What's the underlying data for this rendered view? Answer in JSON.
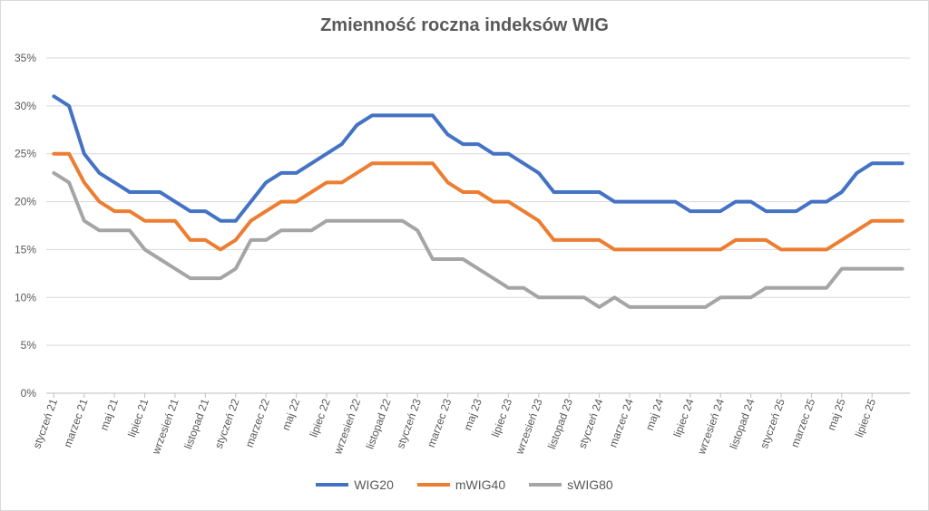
{
  "chart_data": {
    "type": "line",
    "title": "Zmienność roczna indeksów WIG",
    "y_ticks": [
      "0%",
      "5%",
      "10%",
      "15%",
      "20%",
      "25%",
      "30%",
      "35%"
    ],
    "ylim": [
      0,
      35
    ],
    "x_tick_labels": [
      "styczeń 21",
      "marzec 21",
      "maj 21",
      "lipiec 21",
      "wrzesień 21",
      "listopad 21",
      "styczeń 22",
      "marzec 22",
      "maj 22",
      "lipiec 22",
      "wrzesień 22",
      "listopad 22",
      "styczeń 23",
      "marzec 23",
      "maj 23",
      "lipiec 23",
      "wrzesień 23",
      "listopad 23",
      "styczeń 24",
      "marzec 24",
      "maj 24",
      "lipiec 24",
      "wrzesień 24",
      "listopad 24",
      "styczeń 25",
      "marzec 25",
      "maj 25",
      "lipiec 25"
    ],
    "grid": true,
    "legend_position": "bottom",
    "series": [
      {
        "name": "WIG20",
        "color": "#4472c4",
        "values": [
          31,
          30,
          25,
          23,
          22,
          21,
          21,
          21,
          20,
          19,
          19,
          18,
          18,
          20,
          22,
          23,
          23,
          24,
          25,
          26,
          28,
          29,
          29,
          29,
          29,
          29,
          27,
          26,
          26,
          25,
          25,
          24,
          23,
          21,
          21,
          21,
          21,
          20,
          20,
          20,
          20,
          20,
          19,
          19,
          19,
          20,
          20,
          19,
          19,
          19,
          20,
          20,
          21,
          23,
          24,
          24,
          24
        ]
      },
      {
        "name": "mWIG40",
        "color": "#ed7d31",
        "values": [
          25,
          25,
          22,
          20,
          19,
          19,
          18,
          18,
          18,
          16,
          16,
          15,
          16,
          18,
          19,
          20,
          20,
          21,
          22,
          22,
          23,
          24,
          24,
          24,
          24,
          24,
          22,
          21,
          21,
          20,
          20,
          19,
          18,
          16,
          16,
          16,
          16,
          15,
          15,
          15,
          15,
          15,
          15,
          15,
          15,
          16,
          16,
          16,
          15,
          15,
          15,
          15,
          16,
          17,
          18,
          18,
          18
        ]
      },
      {
        "name": "sWIG80",
        "color": "#a5a5a5",
        "values": [
          23,
          22,
          18,
          17,
          17,
          17,
          15,
          14,
          13,
          12,
          12,
          12,
          13,
          16,
          16,
          17,
          17,
          17,
          18,
          18,
          18,
          18,
          18,
          18,
          17,
          14,
          14,
          14,
          13,
          12,
          11,
          11,
          10,
          10,
          10,
          10,
          9,
          10,
          9,
          9,
          9,
          9,
          9,
          9,
          10,
          10,
          10,
          11,
          11,
          11,
          11,
          11,
          13,
          13,
          13,
          13,
          13
        ]
      }
    ]
  }
}
